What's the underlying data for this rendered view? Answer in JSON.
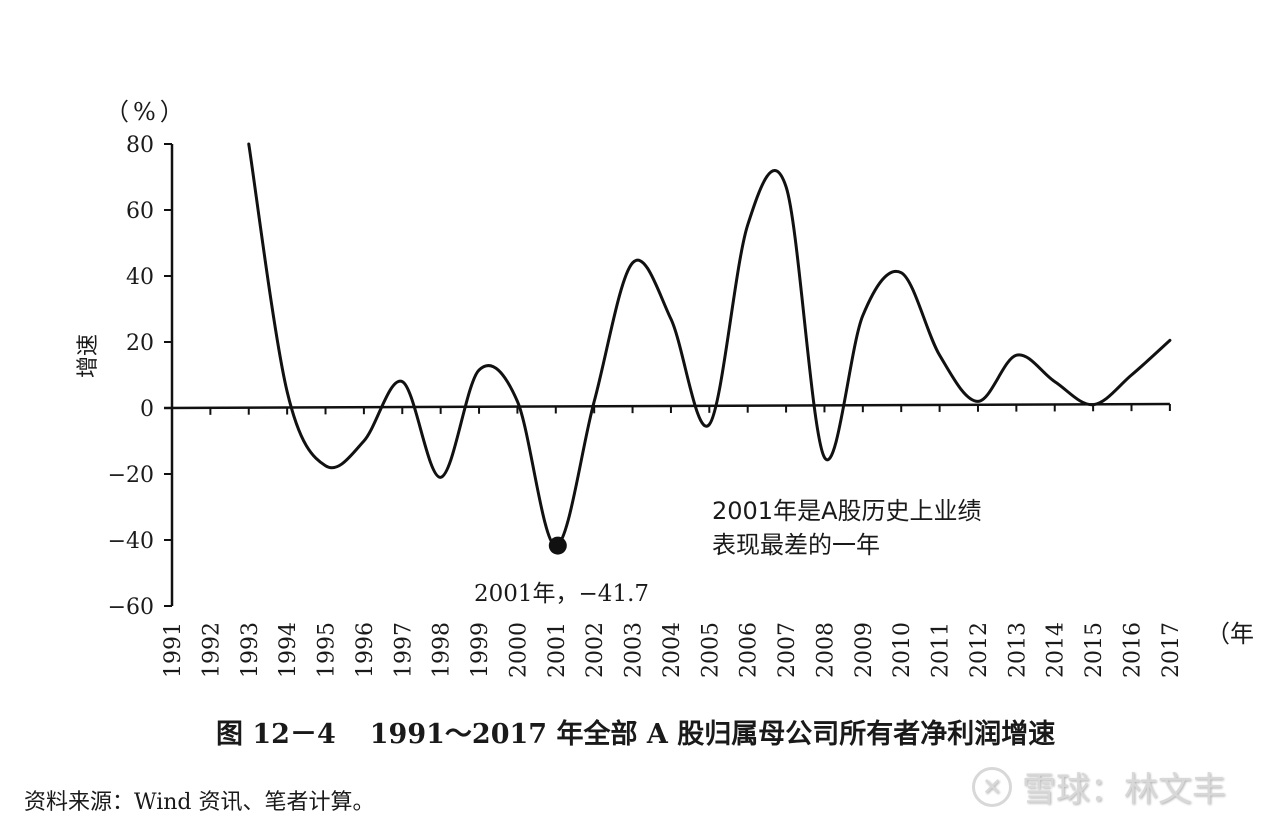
{
  "chart_data": {
    "type": "line",
    "title": "图 12－4　1991～2017 年全部 A 股归属母公司所有者净利润增速",
    "xlabel": "（年）",
    "ylabel": "增速",
    "y_unit": "（%）",
    "ylim": [
      -60,
      80
    ],
    "yticks": [
      80,
      60,
      40,
      20,
      0,
      -20,
      -40,
      -60
    ],
    "ytick_labels": [
      "80",
      "60",
      "40",
      "20",
      "0",
      "−20",
      "−40",
      "−60"
    ],
    "grid": false,
    "legend": null,
    "categories": [
      "1991",
      "1992",
      "1993",
      "1994",
      "1995",
      "1996",
      "1997",
      "1998",
      "1999",
      "2000",
      "2001",
      "2002",
      "2003",
      "2004",
      "2005",
      "2006",
      "2007",
      "2008",
      "2009",
      "2010",
      "2011",
      "2012",
      "2013",
      "2014",
      "2015",
      "2016",
      "2017"
    ],
    "series": [
      {
        "name": "净利润增速",
        "x": [
          "1993",
          "1994",
          "1995",
          "1996",
          "1997",
          "1998",
          "1999",
          "2000",
          "2001",
          "2002",
          "2003",
          "2004",
          "2005",
          "2006",
          "2007",
          "2008",
          "2009",
          "2010",
          "2011",
          "2012",
          "2013",
          "2014",
          "2015",
          "2016",
          "2017"
        ],
        "values": [
          80,
          5,
          -17.5,
          -10,
          8,
          -21,
          11.5,
          2,
          -41.7,
          2,
          44,
          27,
          -5,
          55.5,
          67,
          -15,
          28,
          41,
          16,
          2,
          16,
          8,
          1,
          10,
          20.5
        ]
      }
    ],
    "annotations": [
      {
        "x": "2001",
        "y": -41.7,
        "label": "2001年，−41.7",
        "marker": "filled-circle"
      },
      {
        "label": "2001年是A股历史上业绩表现最差的一年",
        "lines": [
          "2001年是A股历史上业绩",
          "表现最差的一年"
        ]
      }
    ]
  },
  "figure": {
    "fig_no": "图 12－4",
    "caption": "1991～2017 年全部 A 股归属母公司所有者净利润增速",
    "source": "资料来源：Wind 资讯、笔者计算。"
  },
  "labels": {
    "y_unit": "（%）",
    "y_axis": "增速",
    "x_unit": "（年",
    "point_label": "2001年，−41.7",
    "annotation_line1": "2001年是A股历史上业绩",
    "annotation_line2": "表现最差的一年"
  },
  "watermark": {
    "logo": "雪球",
    "text": "雪球：林文丰"
  },
  "colors": {
    "line": "#111111",
    "axis": "#111111",
    "text": "#1a1a1a",
    "watermark": "#d8d8d8"
  }
}
